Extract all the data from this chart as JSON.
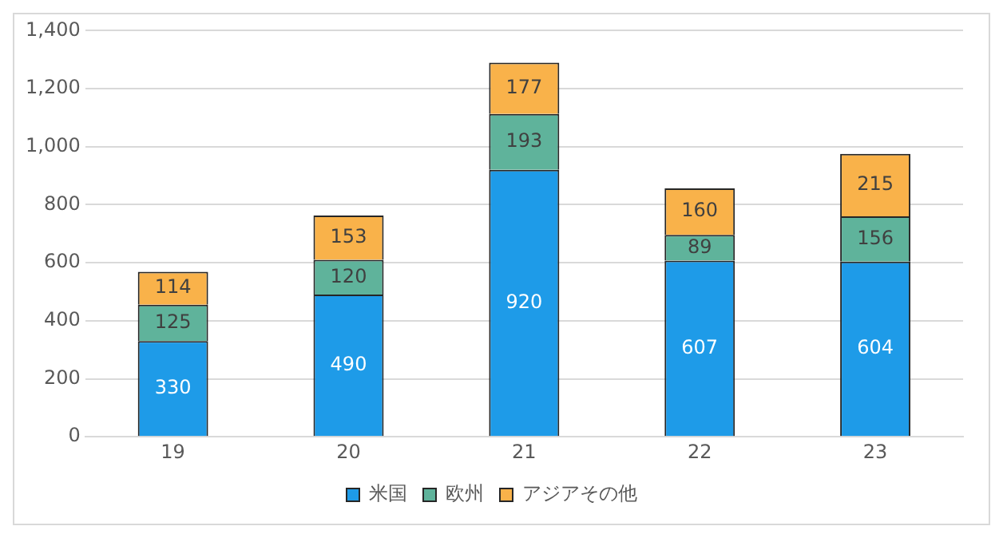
{
  "chart_data": {
    "type": "bar",
    "stacked": true,
    "categories": [
      "19",
      "20",
      "21",
      "22",
      "23"
    ],
    "series": [
      {
        "name": "米国",
        "color": "#1e9be8",
        "values": [
          330,
          490,
          920,
          607,
          604
        ]
      },
      {
        "name": "欧州",
        "color": "#5fb39b",
        "values": [
          125,
          120,
          193,
          89,
          156
        ]
      },
      {
        "name": "アジアその他",
        "color": "#f9b24a",
        "values": [
          114,
          153,
          177,
          160,
          215
        ]
      }
    ],
    "ylim": [
      0,
      1400
    ],
    "yticks": [
      0,
      200,
      400,
      600,
      800,
      {
        "value": 1000,
        "label": "1,000"
      },
      {
        "value": 1200,
        "label": "1,200"
      },
      {
        "value": 1400,
        "label": "1,400"
      }
    ],
    "grid": "y",
    "legend": "bottom",
    "data_labels": true
  }
}
